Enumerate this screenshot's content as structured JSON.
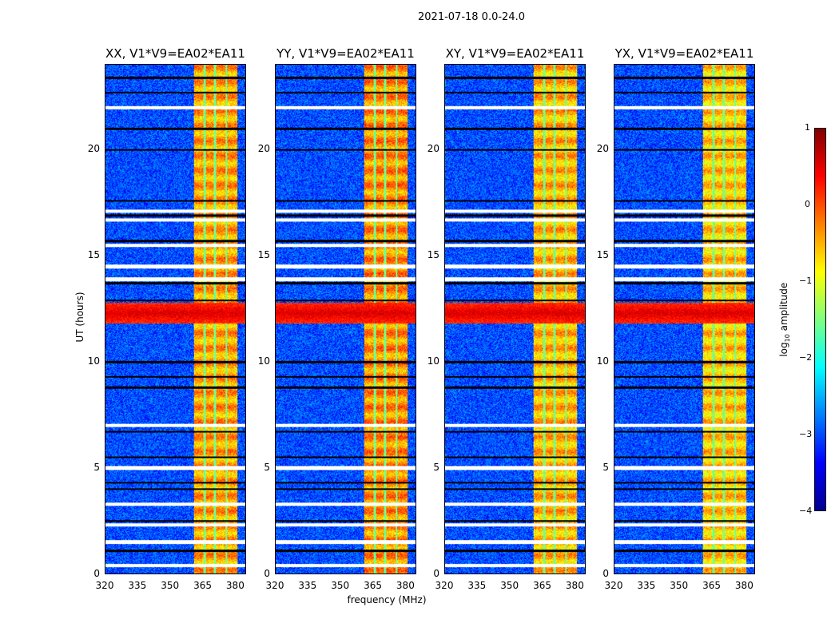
{
  "suptitle": "2021-07-18 0.0-24.0",
  "chart_data": {
    "type": "heatmap",
    "xlabel": "frequency (MHz)",
    "ylabel": "UT (hours)",
    "xlim": [
      320,
      385
    ],
    "ylim": [
      0,
      24
    ],
    "xticks": [
      "320",
      "335",
      "350",
      "365",
      "380"
    ],
    "yticks": [
      "0",
      "5",
      "10",
      "15",
      "20"
    ],
    "colorbar": {
      "label": "log10 amplitude",
      "range": [
        -4,
        1
      ],
      "ticks": [
        "1",
        "0",
        "−1",
        "−2",
        "−3",
        "−4"
      ],
      "colormap": "jet"
    },
    "panels": [
      {
        "title": "XX, V1*V9=EA02*EA11",
        "rfi_level": -0.5
      },
      {
        "title": "YY, V1*V9=EA02*EA11",
        "rfi_level": -0.4
      },
      {
        "title": "XY, V1*V9=EA02*EA11",
        "rfi_level": -0.6
      },
      {
        "title": "YX, V1*V9=EA02*EA11",
        "rfi_level": -0.7
      }
    ],
    "background_level": -3,
    "rfi_band_mhz": [
      361,
      381
    ],
    "rfi_gaps_mhz": [
      365.8,
      370.6,
      376
    ],
    "strong_rfi_hours": [
      11.8,
      12.8
    ],
    "flagged_hours_white": [
      0.4,
      1.5,
      2.3,
      3.3,
      5.0,
      7.0,
      13.9,
      14.5,
      15.5,
      16.7,
      17.1,
      22.0
    ],
    "flagged_hours_black": [
      1.1,
      2.5,
      4.0,
      4.3,
      5.5,
      6.7,
      8.8,
      9.3,
      10.0,
      12.9,
      13.7,
      15.7,
      16.9,
      17.6,
      20.0,
      21.0,
      22.7,
      23.4
    ]
  }
}
